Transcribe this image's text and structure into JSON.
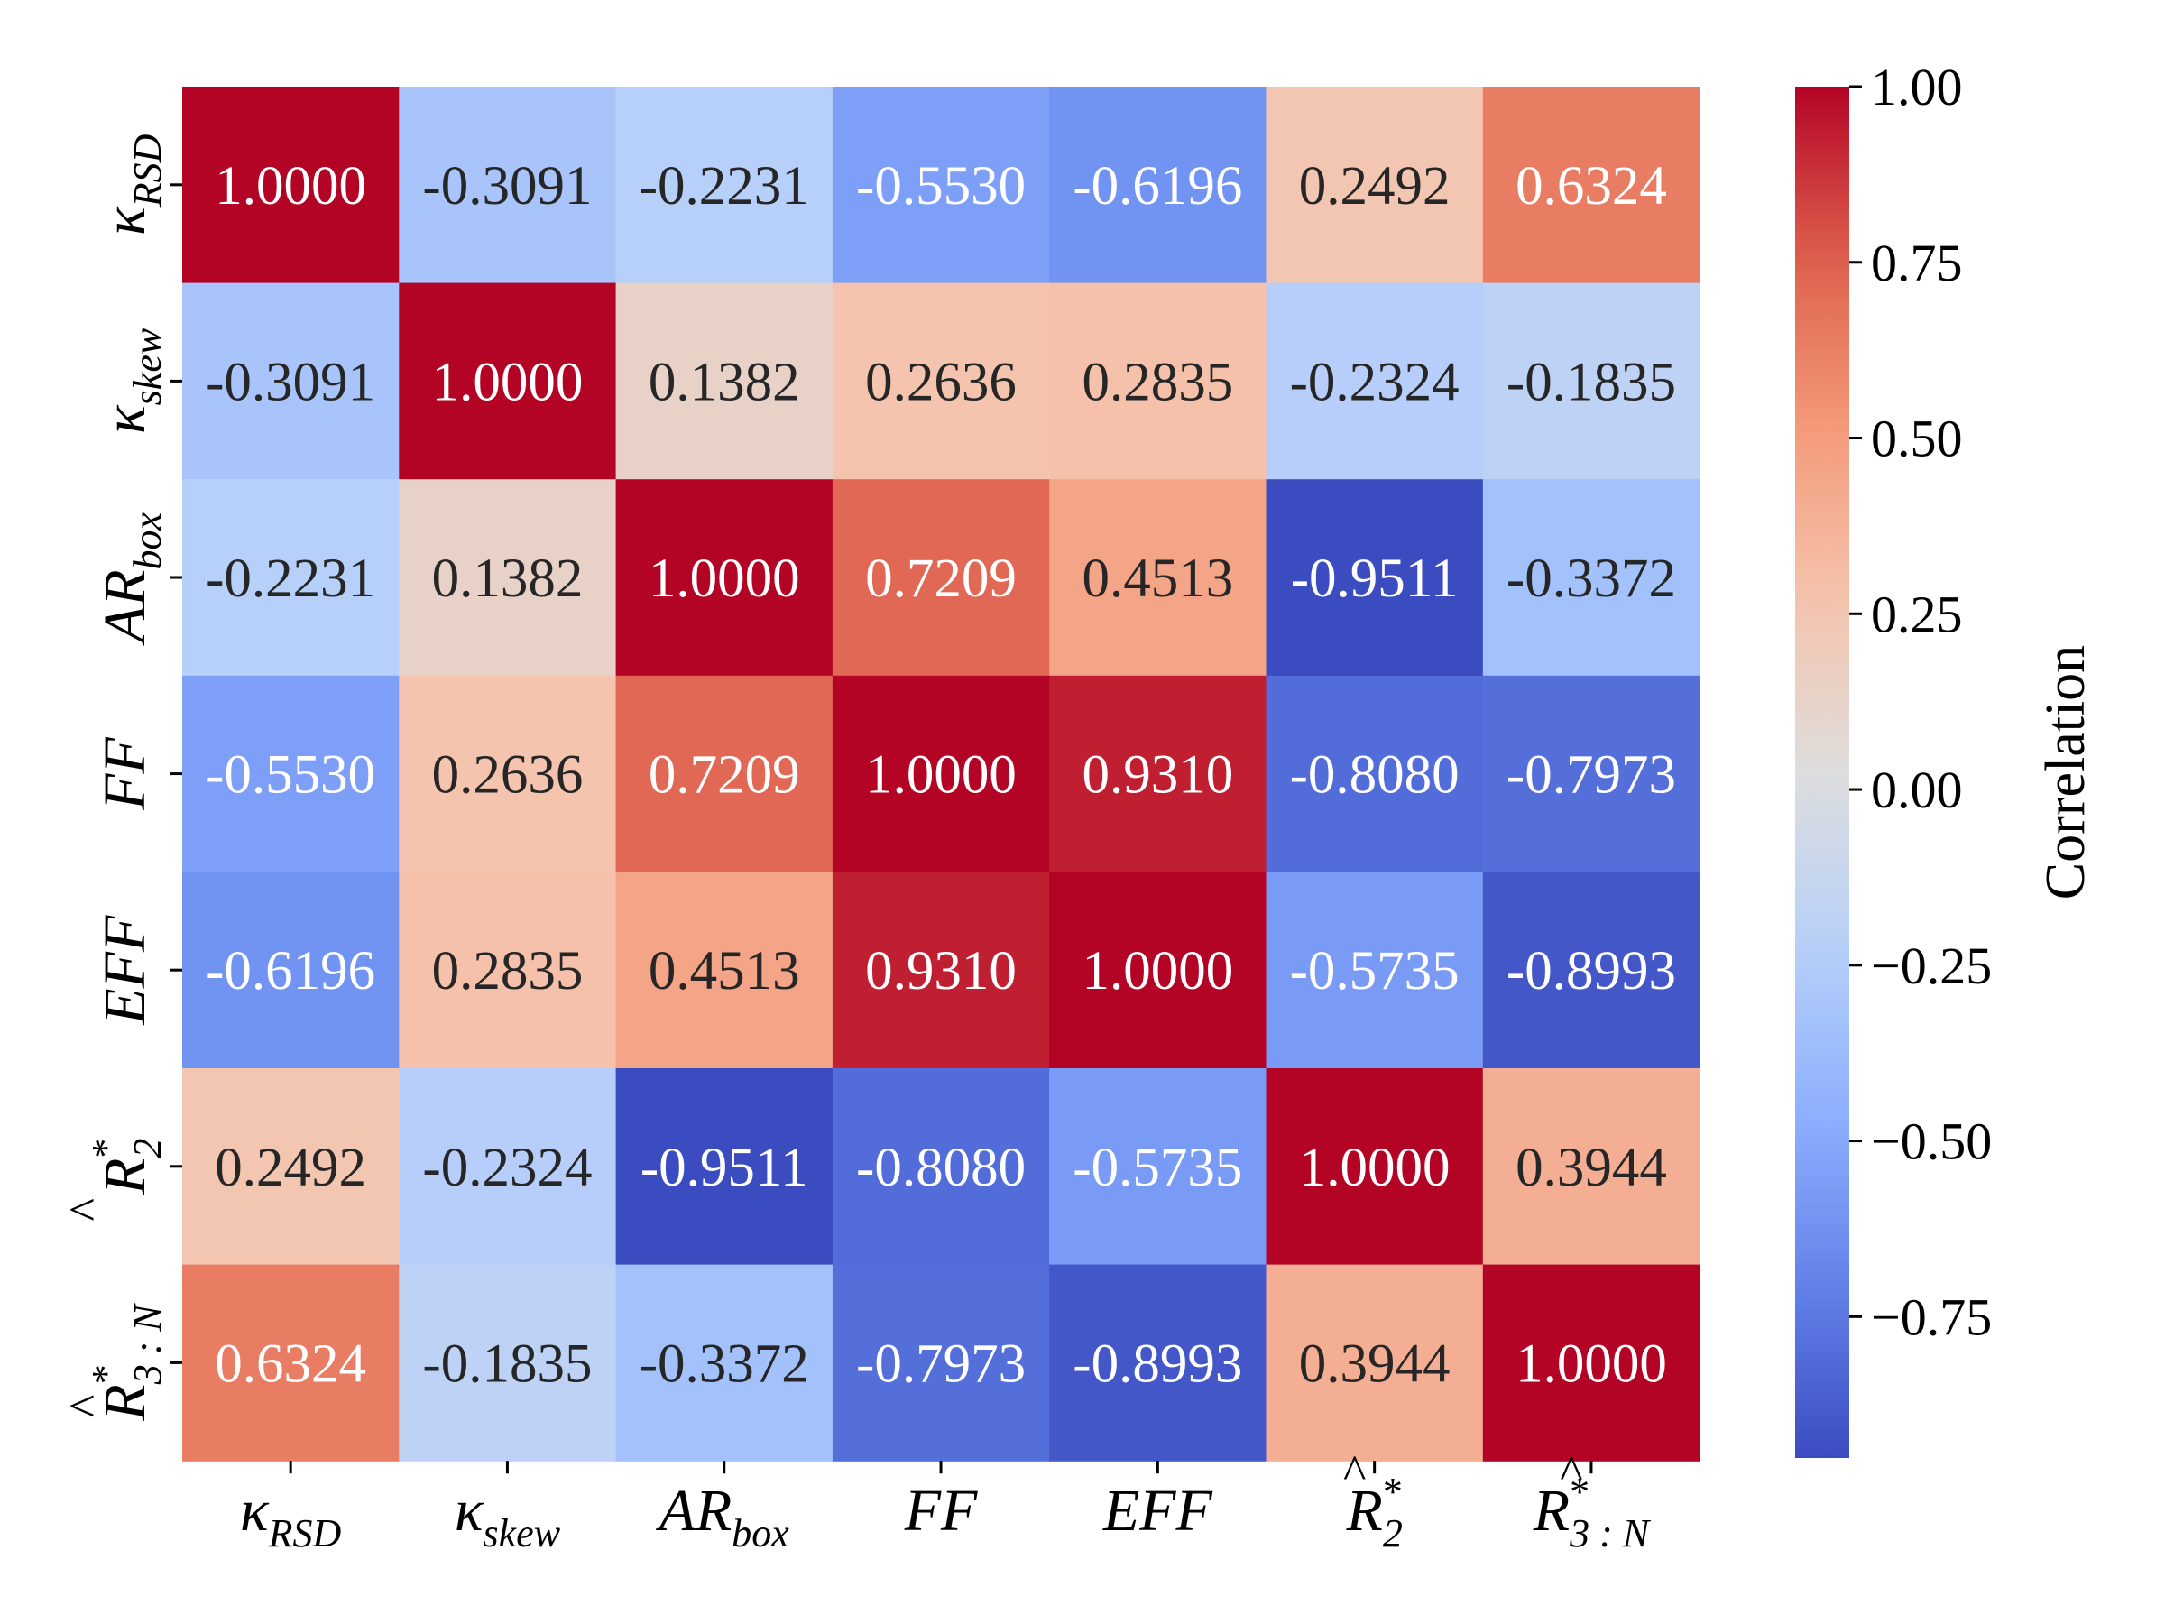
{
  "chart_data": {
    "type": "heatmap",
    "variables": [
      {
        "main": "κ",
        "hat": false,
        "sup": "",
        "sub": "RSD"
      },
      {
        "main": "κ",
        "hat": false,
        "sup": "",
        "sub": "skew"
      },
      {
        "main": "AR",
        "hat": false,
        "sup": "",
        "sub": "box"
      },
      {
        "main": "FF",
        "hat": false,
        "sup": "",
        "sub": ""
      },
      {
        "main": "EFF",
        "hat": false,
        "sup": "",
        "sub": ""
      },
      {
        "main": "R",
        "hat": true,
        "sup": "*",
        "sub": "2"
      },
      {
        "main": "R",
        "hat": true,
        "sup": "*",
        "sub": "3 : N"
      }
    ],
    "values": [
      [
        1.0,
        -0.3091,
        -0.2231,
        -0.553,
        -0.6196,
        0.2492,
        0.6324
      ],
      [
        -0.3091,
        1.0,
        0.1382,
        0.2636,
        0.2835,
        -0.2324,
        -0.1835
      ],
      [
        -0.2231,
        0.1382,
        1.0,
        0.7209,
        0.4513,
        -0.9511,
        -0.3372
      ],
      [
        -0.553,
        0.2636,
        0.7209,
        1.0,
        0.931,
        -0.808,
        -0.7973
      ],
      [
        -0.6196,
        0.2835,
        0.4513,
        0.931,
        1.0,
        -0.5735,
        -0.8993
      ],
      [
        0.2492,
        -0.2324,
        -0.9511,
        -0.808,
        -0.5735,
        1.0,
        0.3944
      ],
      [
        0.6324,
        -0.1835,
        -0.3372,
        -0.7973,
        -0.8993,
        0.3944,
        1.0
      ]
    ],
    "annotation_format": "4 decimals",
    "colormap": "coolwarm",
    "vmin": -0.9511,
    "vmax": 1.0,
    "colorbar": {
      "label": "Correlation",
      "ticks": [
        1.0,
        0.75,
        0.5,
        0.25,
        0.0,
        -0.25,
        -0.5,
        -0.75
      ],
      "tick_labels": [
        "1.00",
        "0.75",
        "0.50",
        "0.25",
        "0.00",
        "−0.25",
        "−0.50",
        "−0.75"
      ],
      "placement": "right"
    },
    "text_color_light": "#ffffff",
    "text_color_dark": "#262626"
  }
}
